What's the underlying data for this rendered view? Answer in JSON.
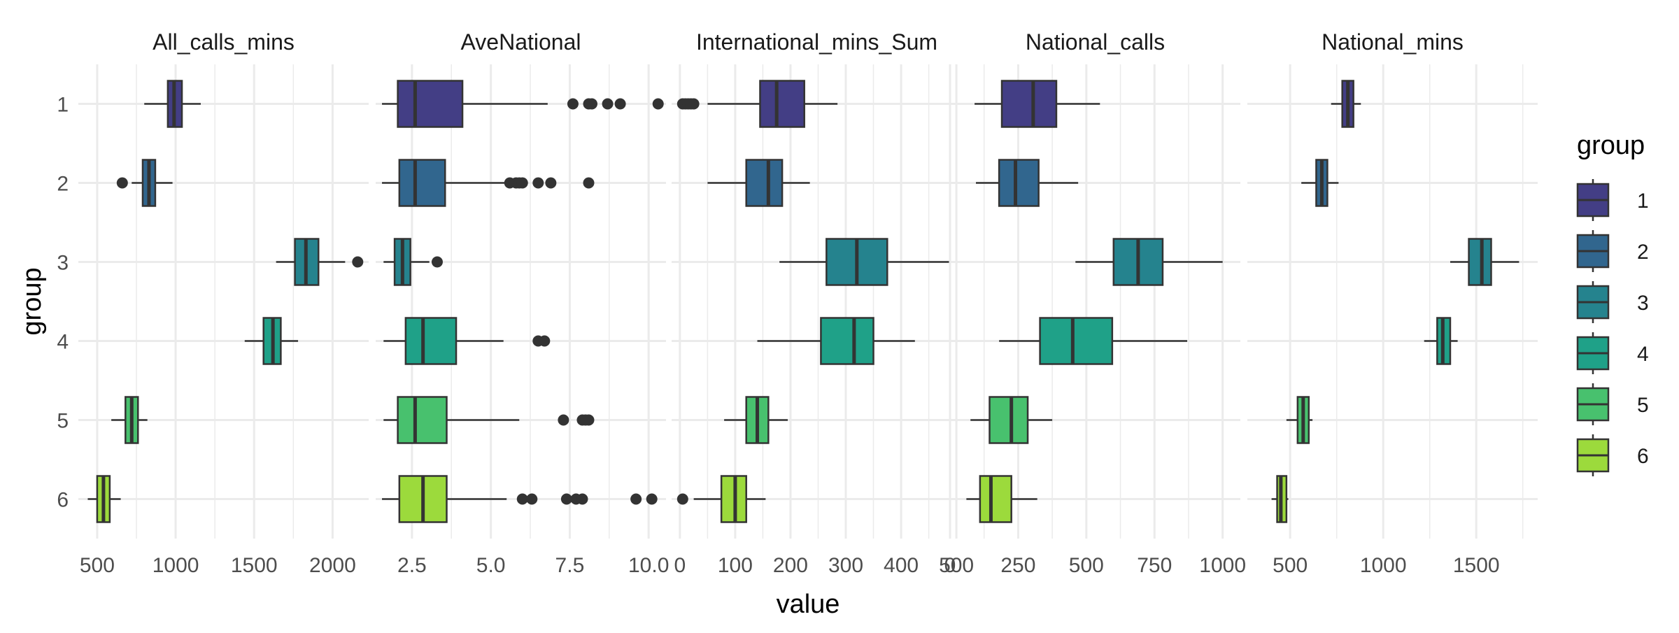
{
  "chart_data": {
    "type": "boxplot",
    "orientation": "horizontal",
    "xlabel": "value",
    "ylabel": "group",
    "grid": true,
    "legend": {
      "title": "group",
      "placement": "right",
      "entries": [
        "1",
        "2",
        "3",
        "4",
        "5",
        "6"
      ]
    },
    "categories": [
      "1",
      "2",
      "3",
      "4",
      "5",
      "6"
    ],
    "colors": [
      "#414487",
      "#2A788E",
      "#22A884",
      "#2FB47C",
      "#4AC16D",
      "#A0DA39"
    ],
    "group_colors": [
      "#433E85",
      "#31668E",
      "#25838E",
      "#1FA188",
      "#48C16E",
      "#9CDA3C"
    ],
    "outline_color": "#333333",
    "point_color": "#333333",
    "panels": [
      {
        "title": "All_calls_mins",
        "xlim": [
          380,
          2230
        ],
        "ticks": [
          500,
          1000,
          1500,
          2000
        ],
        "tick_labels": [
          "500",
          "1000",
          "1500",
          "2000"
        ],
        "boxes": [
          {
            "group": "1",
            "whisker_low": 800,
            "q1": 950,
            "median": 990,
            "q3": 1040,
            "whisker_high": 1160,
            "outliers": []
          },
          {
            "group": "2",
            "whisker_low": 720,
            "q1": 790,
            "median": 830,
            "q3": 870,
            "whisker_high": 980,
            "outliers": [
              660
            ]
          },
          {
            "group": "3",
            "whisker_low": 1640,
            "q1": 1760,
            "median": 1830,
            "q3": 1910,
            "whisker_high": 2080,
            "outliers": [
              2160
            ]
          },
          {
            "group": "4",
            "whisker_low": 1440,
            "q1": 1560,
            "median": 1620,
            "q3": 1670,
            "whisker_high": 1780,
            "outliers": []
          },
          {
            "group": "5",
            "whisker_low": 590,
            "q1": 680,
            "median": 720,
            "q3": 760,
            "whisker_high": 820,
            "outliers": []
          },
          {
            "group": "6",
            "whisker_low": 440,
            "q1": 500,
            "median": 540,
            "q3": 580,
            "whisker_high": 650,
            "outliers": []
          }
        ]
      },
      {
        "title": "AveNational",
        "xlim": [
          1.35,
          10.55
        ],
        "ticks": [
          2.5,
          5.0,
          7.5,
          10.0
        ],
        "tick_labels": [
          "2.5",
          "5.0",
          "7.5",
          "10.0"
        ],
        "boxes": [
          {
            "group": "1",
            "whisker_low": 1.55,
            "q1": 2.05,
            "median": 2.6,
            "q3": 4.1,
            "whisker_high": 6.8,
            "outliers": [
              7.6,
              8.1,
              8.2,
              8.7,
              9.1,
              10.3
            ]
          },
          {
            "group": "2",
            "whisker_low": 1.55,
            "q1": 2.1,
            "median": 2.6,
            "q3": 3.55,
            "whisker_high": 5.5,
            "outliers": [
              5.6,
              5.8,
              5.9,
              6.0,
              6.5,
              6.9,
              8.1
            ]
          },
          {
            "group": "3",
            "whisker_low": 1.6,
            "q1": 1.95,
            "median": 2.2,
            "q3": 2.45,
            "whisker_high": 3.05,
            "outliers": [
              3.3
            ]
          },
          {
            "group": "4",
            "whisker_low": 1.6,
            "q1": 2.3,
            "median": 2.85,
            "q3": 3.9,
            "whisker_high": 5.4,
            "outliers": [
              6.5,
              6.7
            ]
          },
          {
            "group": "5",
            "whisker_low": 1.6,
            "q1": 2.05,
            "median": 2.6,
            "q3": 3.6,
            "whisker_high": 5.9,
            "outliers": [
              7.3,
              7.9,
              8.0,
              8.1
            ]
          },
          {
            "group": "6",
            "whisker_low": 1.55,
            "q1": 2.1,
            "median": 2.85,
            "q3": 3.6,
            "whisker_high": 5.5,
            "outliers": [
              6.0,
              6.3,
              7.4,
              7.7,
              7.9,
              9.6,
              10.1
            ]
          }
        ]
      },
      {
        "title": "International_mins_Sum",
        "xlim": [
          -15,
          510
        ],
        "ticks": [
          0,
          100,
          200,
          300,
          400,
          500
        ],
        "tick_labels": [
          "0",
          "100",
          "200",
          "300",
          "400",
          "500"
        ],
        "boxes": [
          {
            "group": "1",
            "whisker_low": 50,
            "q1": 145,
            "median": 175,
            "q3": 225,
            "whisker_high": 285,
            "outliers": [
              5,
              10,
              15,
              20,
              25
            ]
          },
          {
            "group": "2",
            "whisker_low": 50,
            "q1": 120,
            "median": 160,
            "q3": 185,
            "whisker_high": 235,
            "outliers": []
          },
          {
            "group": "3",
            "whisker_low": 180,
            "q1": 265,
            "median": 320,
            "q3": 375,
            "whisker_high": 490,
            "outliers": []
          },
          {
            "group": "4",
            "whisker_low": 140,
            "q1": 255,
            "median": 315,
            "q3": 350,
            "whisker_high": 425,
            "outliers": []
          },
          {
            "group": "5",
            "whisker_low": 80,
            "q1": 120,
            "median": 140,
            "q3": 160,
            "whisker_high": 195,
            "outliers": []
          },
          {
            "group": "6",
            "whisker_low": 25,
            "q1": 75,
            "median": 100,
            "q3": 120,
            "whisker_high": 155,
            "outliers": [
              5
            ]
          }
        ]
      },
      {
        "title": "National_calls",
        "xlim": [
          0,
          1065
        ],
        "ticks": [
          0,
          250,
          500,
          750,
          1000
        ],
        "tick_labels": [
          "0",
          "250",
          "500",
          "750",
          "1000"
        ],
        "boxes": [
          {
            "group": "1",
            "whisker_low": 90,
            "q1": 190,
            "median": 305,
            "q3": 390,
            "whisker_high": 550,
            "outliers": []
          },
          {
            "group": "2",
            "whisker_low": 95,
            "q1": 180,
            "median": 240,
            "q3": 325,
            "whisker_high": 470,
            "outliers": []
          },
          {
            "group": "3",
            "whisker_low": 460,
            "q1": 600,
            "median": 690,
            "q3": 780,
            "whisker_high": 1000,
            "outliers": []
          },
          {
            "group": "4",
            "whisker_low": 180,
            "q1": 330,
            "median": 450,
            "q3": 595,
            "whisker_high": 870,
            "outliers": []
          },
          {
            "group": "5",
            "whisker_low": 75,
            "q1": 145,
            "median": 225,
            "q3": 285,
            "whisker_high": 375,
            "outliers": []
          },
          {
            "group": "6",
            "whisker_low": 60,
            "q1": 110,
            "median": 150,
            "q3": 225,
            "whisker_high": 320,
            "outliers": []
          }
        ]
      },
      {
        "title": "National_mins",
        "xlim": [
          270,
          1830
        ],
        "ticks": [
          500,
          1000,
          1500
        ],
        "tick_labels": [
          "500",
          "1000",
          "1500"
        ],
        "boxes": [
          {
            "group": "1",
            "whisker_low": 720,
            "q1": 780,
            "median": 810,
            "q3": 840,
            "whisker_high": 880,
            "outliers": []
          },
          {
            "group": "2",
            "whisker_low": 560,
            "q1": 640,
            "median": 670,
            "q3": 700,
            "whisker_high": 760,
            "outliers": []
          },
          {
            "group": "3",
            "whisker_low": 1360,
            "q1": 1460,
            "median": 1530,
            "q3": 1580,
            "whisker_high": 1730,
            "outliers": []
          },
          {
            "group": "4",
            "whisker_low": 1220,
            "q1": 1290,
            "median": 1320,
            "q3": 1360,
            "whisker_high": 1400,
            "outliers": []
          },
          {
            "group": "5",
            "whisker_low": 480,
            "q1": 540,
            "median": 570,
            "q3": 600,
            "whisker_high": 620,
            "outliers": []
          },
          {
            "group": "6",
            "whisker_low": 400,
            "q1": 430,
            "median": 450,
            "q3": 480,
            "whisker_high": 490,
            "outliers": []
          }
        ]
      }
    ]
  }
}
